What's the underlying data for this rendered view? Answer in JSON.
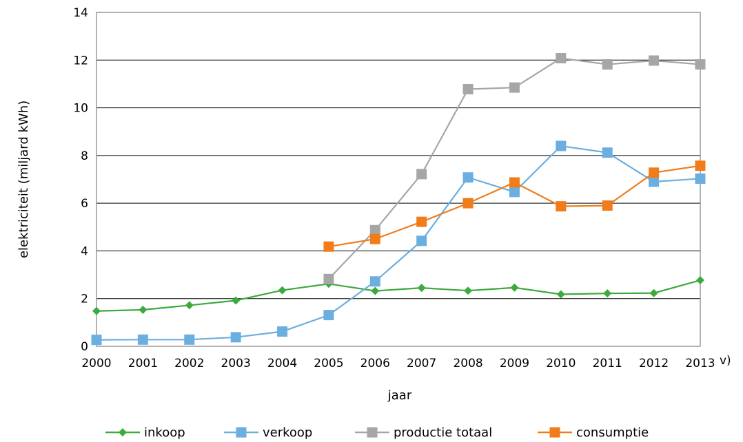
{
  "chart_data": {
    "type": "line",
    "title": "",
    "xlabel": "jaar",
    "ylabel": "elektriciteit (miljard kWh)",
    "x": [
      2000,
      2001,
      2002,
      2003,
      2004,
      2005,
      2006,
      2007,
      2008,
      2009,
      2010,
      2011,
      2012,
      2013
    ],
    "x_tick_labels": [
      "2000",
      "2001",
      "2002",
      "2003",
      "2004",
      "2005",
      "2006",
      "2007",
      "2008",
      "2009",
      "2010",
      "2011",
      "2012",
      "2013"
    ],
    "x_suffix": "v)",
    "ylim": [
      0,
      14
    ],
    "y_ticks": [
      0,
      2,
      4,
      6,
      8,
      10,
      12,
      14
    ],
    "grid": true,
    "legend_position": "bottom",
    "series": [
      {
        "name": "inkoop",
        "color": "#3caa3c",
        "marker": "diamond",
        "values": [
          1.48,
          1.53,
          1.72,
          1.92,
          2.35,
          2.62,
          2.32,
          2.45,
          2.33,
          2.46,
          2.18,
          2.22,
          2.23,
          2.77
        ]
      },
      {
        "name": "verkoop",
        "color": "#6baee0",
        "marker": "square",
        "values": [
          0.27,
          0.28,
          0.28,
          0.38,
          0.62,
          1.31,
          2.72,
          4.42,
          7.08,
          6.47,
          8.4,
          8.12,
          6.9,
          7.03
        ]
      },
      {
        "name": "productie totaal",
        "color": "#a6a6a6",
        "marker": "square",
        "values": [
          null,
          null,
          null,
          null,
          null,
          2.82,
          4.87,
          7.22,
          10.78,
          10.85,
          12.08,
          11.82,
          11.98,
          11.82
        ]
      },
      {
        "name": "consumptie",
        "color": "#f07d1a",
        "marker": "square",
        "values": [
          null,
          null,
          null,
          null,
          null,
          4.18,
          4.5,
          5.22,
          6.0,
          6.87,
          5.87,
          5.9,
          7.28,
          7.57
        ]
      }
    ]
  }
}
